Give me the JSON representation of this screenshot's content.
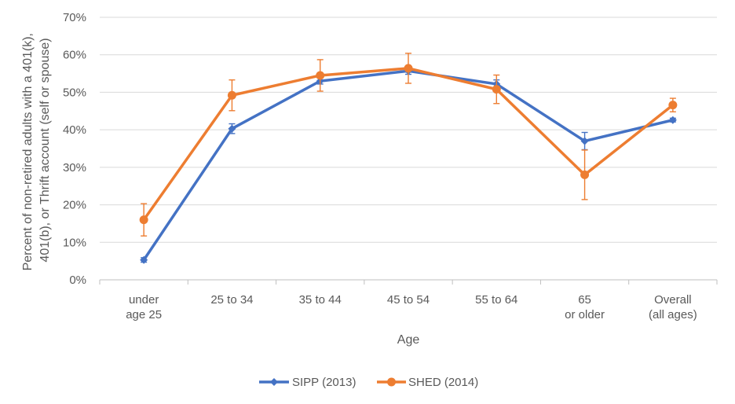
{
  "chart_data": {
    "type": "line",
    "xlabel": "Age",
    "ylabel_lines": [
      "Percent of non-retired adults with a 401(k),",
      "401(b), or Thrift account (self or spouse)"
    ],
    "categories": [
      [
        "under",
        "age 25"
      ],
      [
        "25 to 34"
      ],
      [
        "35 to 44"
      ],
      [
        "45 to 54"
      ],
      [
        "55 to 64"
      ],
      [
        "65",
        "or older"
      ],
      [
        "Overall",
        "(all ages)"
      ]
    ],
    "yticks": [
      "0%",
      "10%",
      "20%",
      "30%",
      "40%",
      "50%",
      "60%",
      "70%"
    ],
    "ylim": [
      0,
      70
    ],
    "grid": true,
    "legend_position": "bottom",
    "series": [
      {
        "name": "SIPP (2013)",
        "color": "#4472C4",
        "marker": "diamond",
        "values": [
          5.3,
          40.3,
          53.0,
          55.7,
          52.2,
          37.0,
          42.6
        ],
        "error": [
          0.6,
          1.3,
          0.8,
          0.9,
          1.1,
          2.3,
          0.5
        ]
      },
      {
        "name": "SHED (2014)",
        "color": "#ED7D31",
        "marker": "circle",
        "values": [
          16.0,
          49.2,
          54.5,
          56.4,
          50.8,
          28.0,
          46.6
        ],
        "error": [
          4.3,
          4.1,
          4.2,
          4.0,
          3.8,
          6.6,
          1.8
        ]
      }
    ]
  }
}
